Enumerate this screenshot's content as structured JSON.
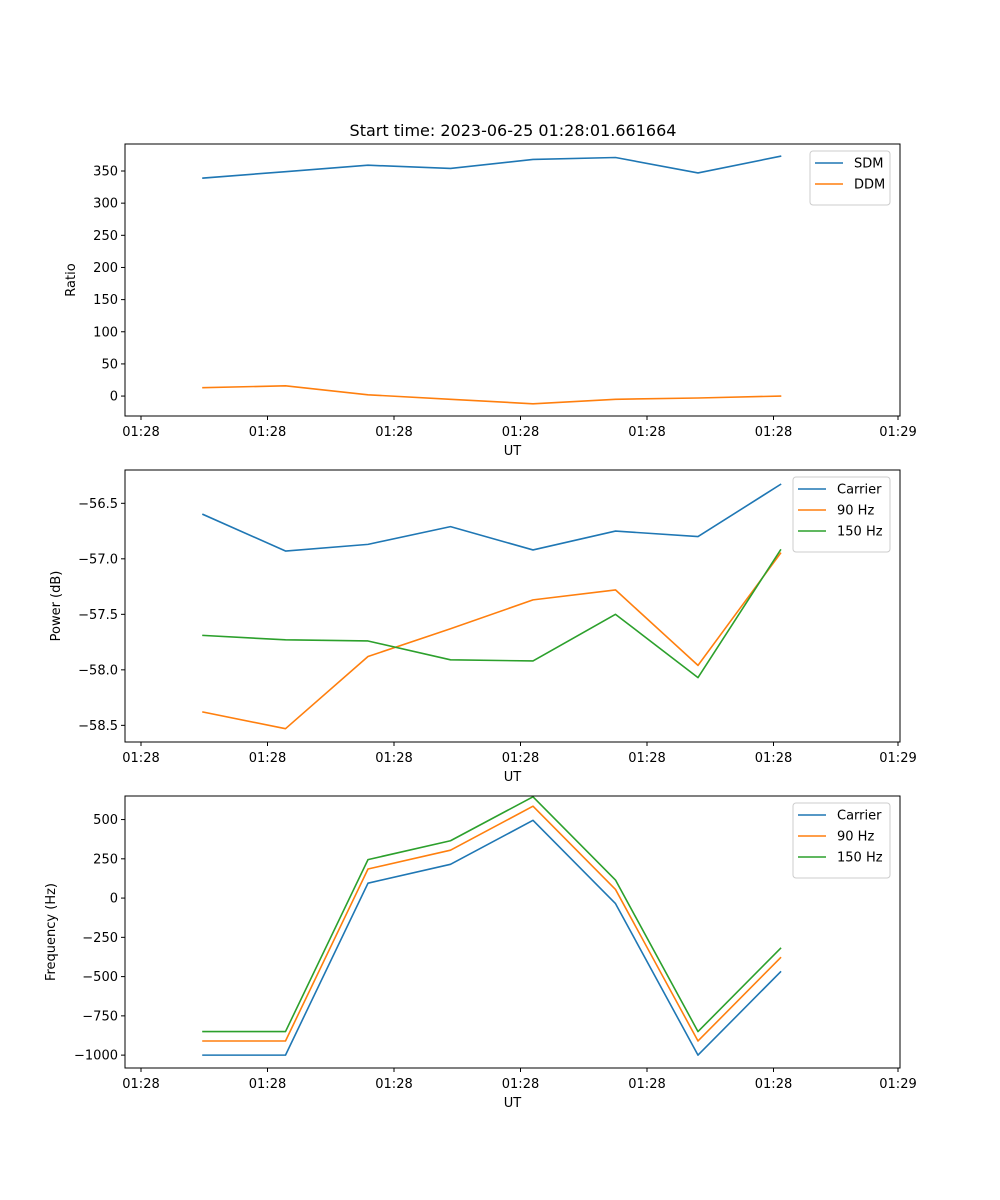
{
  "figure": {
    "title": "Start time: 2023-06-25 01:28:01.661664"
  },
  "colors": {
    "blue": "#1f77b4",
    "orange": "#ff7f0e",
    "green": "#2ca02c"
  },
  "chart_data": [
    {
      "type": "line",
      "title": "Start time: 2023-06-25 01:28:01.661664",
      "xlabel": "UT",
      "ylabel": "Ratio",
      "x_tick_labels": [
        "01:28",
        "01:28",
        "01:28",
        "01:28",
        "01:28",
        "01:28",
        "01:29"
      ],
      "y_ticks": [
        0,
        50,
        100,
        150,
        200,
        250,
        300,
        350
      ],
      "ylim": [
        -31,
        392
      ],
      "legend_position": "top-right",
      "grid": false,
      "series": [
        {
          "name": "SDM",
          "color": "#1f77b4",
          "values": [
            339,
            349,
            359,
            354,
            368,
            371,
            347,
            373
          ]
        },
        {
          "name": "DDM",
          "color": "#ff7f0e",
          "values": [
            13,
            16,
            2,
            -5,
            -12,
            -5,
            -3,
            0
          ]
        }
      ]
    },
    {
      "type": "line",
      "xlabel": "UT",
      "ylabel": "Power (dB)",
      "x_tick_labels": [
        "01:28",
        "01:28",
        "01:28",
        "01:28",
        "01:28",
        "01:28",
        "01:29"
      ],
      "y_ticks": [
        -58.5,
        -58.0,
        -57.5,
        -57.0,
        -56.5
      ],
      "y_tick_labels": [
        "−58.5",
        "−58.0",
        "−57.5",
        "−57.0",
        "−56.5"
      ],
      "ylim": [
        -58.65,
        -56.2
      ],
      "legend_position": "top-right",
      "grid": false,
      "series": [
        {
          "name": "Carrier",
          "color": "#1f77b4",
          "values": [
            -56.6,
            -56.93,
            -56.87,
            -56.71,
            -56.92,
            -56.75,
            -56.8,
            -56.33
          ]
        },
        {
          "name": "90 Hz",
          "color": "#ff7f0e",
          "values": [
            -58.38,
            -58.53,
            -57.88,
            -57.63,
            -57.37,
            -57.28,
            -57.96,
            -56.95
          ]
        },
        {
          "name": "150 Hz",
          "color": "#2ca02c",
          "values": [
            -57.69,
            -57.73,
            -57.74,
            -57.91,
            -57.92,
            -57.5,
            -58.07,
            -56.92
          ]
        }
      ]
    },
    {
      "type": "line",
      "xlabel": "UT",
      "ylabel": "Frequency (Hz)",
      "x_tick_labels": [
        "01:28",
        "01:28",
        "01:28",
        "01:28",
        "01:28",
        "01:28",
        "01:29"
      ],
      "y_ticks": [
        -1000,
        -750,
        -500,
        -250,
        0,
        250,
        500
      ],
      "y_tick_labels": [
        "−1000",
        "−750",
        "−500",
        "−250",
        "0",
        "250",
        "500"
      ],
      "ylim": [
        -1082,
        650
      ],
      "legend_position": "top-right",
      "grid": false,
      "series": [
        {
          "name": "Carrier",
          "color": "#1f77b4",
          "values": [
            -1000,
            -1000,
            95,
            215,
            495,
            -35,
            -1000,
            -470
          ]
        },
        {
          "name": "90 Hz",
          "color": "#ff7f0e",
          "values": [
            -910,
            -910,
            185,
            305,
            585,
            55,
            -910,
            -380
          ]
        },
        {
          "name": "150 Hz",
          "color": "#2ca02c",
          "values": [
            -850,
            -850,
            245,
            365,
            645,
            115,
            -850,
            -320
          ]
        }
      ]
    }
  ]
}
